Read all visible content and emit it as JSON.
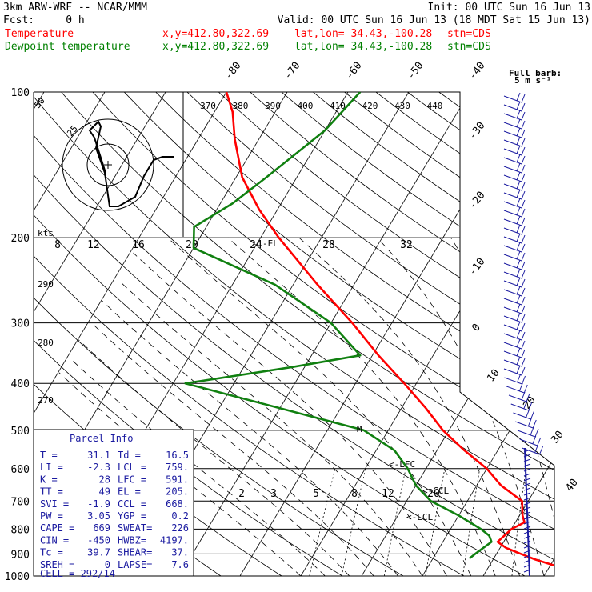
{
  "header": {
    "line1_left": "3km ARW-WRF -- NCAR/MMM",
    "line1_right": "Init: 00 UTC Sun 16 Jun 13",
    "line2_left": "Fcst:     0 h",
    "line2_right": "Valid: 00 UTC Sun 16 Jun 13 (18 MDT Sat 15 Jun 13)",
    "series": [
      {
        "name": "Temperature",
        "coords": "x,y=412.80,322.69",
        "latlon": "lat,lon= 34.43,-100.28",
        "stn": "stn=CDS",
        "color": "#ff0000"
      },
      {
        "name": "Dewpoint temperature",
        "coords": "x,y=412.80,322.69",
        "latlon": "lat,lon= 34.43,-100.28",
        "stn": "stn=CDS",
        "color": "#008000"
      }
    ]
  },
  "colors": {
    "temperature": "#ff0000",
    "dewpoint": "#108010",
    "parcel_text": "#1a1aa0",
    "barbs": "#1a1aa0",
    "grid": "#000000"
  },
  "chart_data": {
    "type": "line",
    "ylabel_unit": "hPa",
    "y_scale": "log-pressure",
    "pressure_ticks": [
      100,
      200,
      300,
      400,
      500,
      600,
      700,
      800,
      900,
      1000
    ],
    "temperature_ticks": [
      -80,
      -70,
      -60,
      -50,
      -40,
      -30,
      -20,
      -10,
      0,
      10,
      20,
      30,
      40
    ],
    "theta_labels": [
      370,
      380,
      390,
      400,
      410,
      420,
      430,
      440
    ],
    "hodo_speed_labels": [
      8,
      12,
      16,
      20,
      24,
      28,
      32
    ],
    "hodo_ring_labels": [
      "25",
      "50"
    ],
    "hodo_units": "kts",
    "theta_side_labels": [
      "290",
      "280",
      "270"
    ],
    "mixing_ratio_labels": [
      "2",
      "3",
      "5",
      "8",
      "12",
      "20"
    ],
    "barb_legend": {
      "title": "Full barb:",
      "value": "5 m s⁻¹"
    },
    "levels_labels": {
      "el": "-EL",
      "lfc": "<-LFC",
      "ccl": "<-CCL",
      "lcl": "<-LCL",
      "m": "M"
    },
    "series": [
      {
        "name": "Temperature",
        "points": [
          [
            1000,
            38.5
          ],
          [
            975,
            35.5
          ],
          [
            950,
            30.5
          ],
          [
            925,
            27.0
          ],
          [
            900,
            24.0
          ],
          [
            875,
            21.0
          ],
          [
            850,
            19.0
          ],
          [
            825,
            19.5
          ],
          [
            800,
            20.0
          ],
          [
            775,
            21.5
          ],
          [
            750,
            20.5
          ],
          [
            700,
            19.0
          ],
          [
            650,
            14.0
          ],
          [
            600,
            10.0
          ],
          [
            550,
            4.5
          ],
          [
            500,
            -1.0
          ],
          [
            450,
            -6.0
          ],
          [
            400,
            -12.0
          ],
          [
            350,
            -19.0
          ],
          [
            300,
            -26.5
          ],
          [
            250,
            -36.0
          ],
          [
            200,
            -47.0
          ],
          [
            175,
            -53.0
          ],
          [
            150,
            -59.0
          ],
          [
            125,
            -64.0
          ],
          [
            110,
            -67.0
          ],
          [
            100,
            -70.0
          ]
        ]
      },
      {
        "name": "Dewpoint temperature",
        "points": [
          [
            920,
            16.0
          ],
          [
            900,
            16.5
          ],
          [
            850,
            18.0
          ],
          [
            825,
            17.0
          ],
          [
            800,
            15.0
          ],
          [
            750,
            10.0
          ],
          [
            700,
            4.0
          ],
          [
            650,
            0.0
          ],
          [
            600,
            -3.0
          ],
          [
            550,
            -7.0
          ],
          [
            500,
            -14.0
          ],
          [
            450,
            -30.0
          ],
          [
            400,
            -48.0
          ],
          [
            370,
            -32.0
          ],
          [
            350,
            -22.0
          ],
          [
            300,
            -30.0
          ],
          [
            250,
            -43.0
          ],
          [
            210,
            -60.0
          ],
          [
            190,
            -62.0
          ],
          [
            170,
            -58.0
          ],
          [
            150,
            -55.0
          ],
          [
            120,
            -50.0
          ],
          [
            100,
            -48.0
          ]
        ]
      }
    ]
  },
  "parcel_info": {
    "title": "Parcel Info",
    "rows": [
      [
        "T  =",
        "31.1",
        "Td =",
        "16.5"
      ],
      [
        "LI =",
        "-2.3",
        "LCL =",
        "759."
      ],
      [
        "K  =",
        "28",
        "LFC =",
        "591."
      ],
      [
        "TT =",
        "49",
        "EL  =",
        "205."
      ],
      [
        "SVI =",
        "-1.9",
        "CCL =",
        "668."
      ],
      [
        "PW =",
        "3.05",
        "YGP =",
        "0.2"
      ],
      [
        "CAPE =",
        "669",
        "SWEAT=",
        "226"
      ],
      [
        "CIN =",
        "-450",
        "HWBZ=",
        "4197."
      ],
      [
        "Tc =",
        "39.7",
        "SHEAR=",
        "37."
      ],
      [
        "SREH =",
        "0",
        "LAPSE=",
        "7.6"
      ]
    ],
    "cell": "CELL = 292/14"
  }
}
